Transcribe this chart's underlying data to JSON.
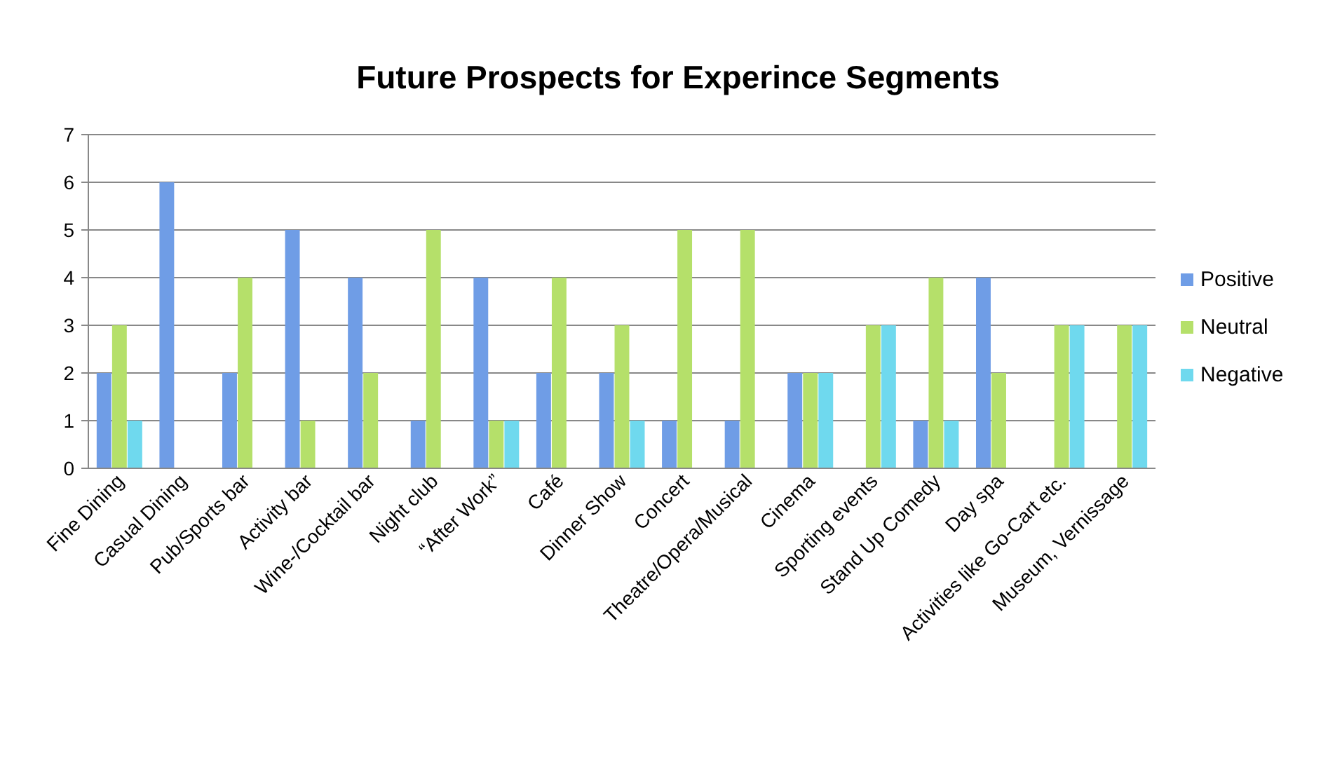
{
  "chart_data": {
    "type": "bar",
    "title": "Future Prospects for Experince Segments",
    "categories": [
      "Fine Dining",
      "Casual Dining",
      "Pub/Sports bar",
      "Activity bar",
      "Wine-/Cocktail bar",
      "Night club",
      "“After Work”",
      "Café",
      "Dinner Show",
      "Concert",
      "Theatre/Opera/Musical",
      "Cinema",
      "Sporting events",
      "Stand Up Comedy",
      "Day spa",
      "Activities like Go-Cart etc.",
      "Museum, Vernissage"
    ],
    "series": [
      {
        "name": "Positive",
        "color": "#6f9de6",
        "values": [
          2,
          6,
          2,
          5,
          4,
          1,
          4,
          2,
          2,
          1,
          1,
          2,
          0,
          1,
          4,
          0,
          0
        ]
      },
      {
        "name": "Neutral",
        "color": "#b5e06a",
        "values": [
          3,
          0,
          4,
          1,
          2,
          5,
          1,
          4,
          3,
          5,
          5,
          2,
          3,
          4,
          2,
          3,
          3
        ]
      },
      {
        "name": "Negative",
        "color": "#6fd9ee",
        "values": [
          1,
          0,
          0,
          0,
          0,
          0,
          1,
          0,
          1,
          0,
          0,
          2,
          3,
          1,
          0,
          3,
          3
        ]
      }
    ],
    "ylim": [
      0,
      7
    ],
    "yticks": [
      0,
      1,
      2,
      3,
      4,
      5,
      6,
      7
    ],
    "grid": "y",
    "legend": "right"
  }
}
